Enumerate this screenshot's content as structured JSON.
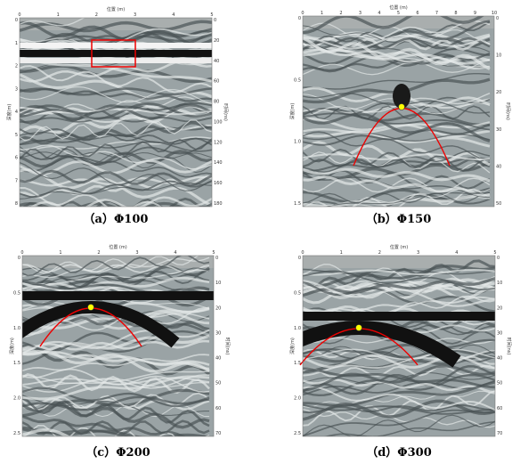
{
  "panels": [
    {
      "caption": "（a）Φ100",
      "x_axis_label": "位置 (m)",
      "y_axis_label": "深度(m)",
      "y2_axis_label": "时间(ns)",
      "x_ticks": [
        "0",
        "1",
        "2",
        "3",
        "4",
        "5"
      ],
      "y_ticks": [
        "0",
        "1",
        "2",
        "3",
        "4",
        "5",
        "6",
        "7",
        "8"
      ],
      "y2_ticks": [
        "0",
        "20",
        "40",
        "60",
        "80",
        "100",
        "120",
        "140",
        "160",
        "180"
      ]
    },
    {
      "caption": "（b）Φ150",
      "x_axis_label": "位置 (m)",
      "y_axis_label": "深度(m)",
      "y2_axis_label": "时间(ns)",
      "x_ticks": [
        "0",
        "1",
        "2",
        "3",
        "4",
        "5",
        "6",
        "7",
        "8",
        "9",
        "10"
      ],
      "y_ticks": [
        "0",
        "0.5",
        "1.0",
        "1.5"
      ],
      "y2_ticks": [
        "0",
        "10",
        "20",
        "30",
        "40",
        "50"
      ]
    },
    {
      "caption": "（c）Φ200",
      "x_axis_label": "位置 (m)",
      "y_axis_label": "深度(m)",
      "y2_axis_label": "时间(ns)",
      "x_ticks": [
        "0",
        "1",
        "2",
        "3",
        "4",
        "5"
      ],
      "y_ticks": [
        "0",
        "0.5",
        "1.0",
        "1.5",
        "2.0",
        "2.5"
      ],
      "y2_ticks": [
        "0",
        "10",
        "20",
        "30",
        "40",
        "50",
        "60",
        "70"
      ]
    },
    {
      "caption": "（d）Φ300",
      "x_axis_label": "位置 (m)",
      "y_axis_label": "深度(m)",
      "y2_axis_label": "时间(ns)",
      "x_ticks": [
        "0",
        "1",
        "2",
        "3",
        "4",
        "5"
      ],
      "y_ticks": [
        "0",
        "0.5",
        "1.0",
        "1.5",
        "2.0",
        "2.5"
      ],
      "y2_ticks": [
        "0",
        "10",
        "20",
        "30",
        "40",
        "50",
        "60",
        "70"
      ]
    }
  ]
}
